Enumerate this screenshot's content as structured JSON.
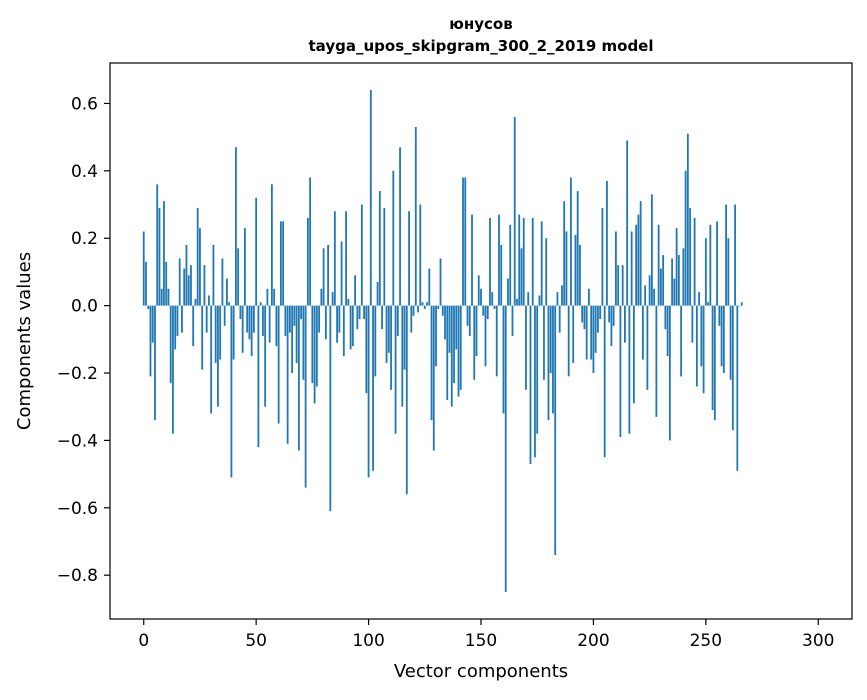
{
  "chart_data": {
    "type": "bar",
    "title": "юнусов",
    "subtitle": "tayga_upos_skipgram_300_2_2019 model",
    "xlabel": "Vector components",
    "ylabel": "Components values",
    "xlim": [
      -15,
      315
    ],
    "ylim": [
      -0.93,
      0.72
    ],
    "xticks": [
      0,
      50,
      100,
      150,
      200,
      250,
      300
    ],
    "xtick_labels": [
      "0",
      "50",
      "100",
      "150",
      "200",
      "250",
      "300"
    ],
    "yticks": [
      -0.8,
      -0.6,
      -0.4,
      -0.2,
      0.0,
      0.2,
      0.4,
      0.6
    ],
    "ytick_labels": [
      "−0.8",
      "−0.6",
      "−0.4",
      "−0.2",
      "0.0",
      "0.2",
      "0.4",
      "0.6"
    ],
    "grid": false,
    "bar_color": "#1f77b4",
    "x_start": 0,
    "values": [
      0.22,
      0.13,
      -0.01,
      -0.21,
      -0.11,
      -0.34,
      0.36,
      0.29,
      0.05,
      0.31,
      0.13,
      0.05,
      -0.23,
      -0.38,
      -0.13,
      -0.09,
      0.14,
      -0.08,
      0.11,
      0.18,
      0.09,
      0.12,
      -0.12,
      0.02,
      0.29,
      0.23,
      -0.19,
      0.12,
      -0.08,
      0.03,
      -0.32,
      0.18,
      -0.17,
      -0.3,
      -0.16,
      0.14,
      -0.06,
      0.08,
      0.01,
      -0.51,
      -0.16,
      0.47,
      0.17,
      -0.04,
      -0.14,
      0.23,
      -0.08,
      -0.1,
      -0.15,
      -0.08,
      0.32,
      -0.42,
      0.01,
      -0.09,
      -0.3,
      0.05,
      -0.11,
      0.36,
      0.05,
      -0.12,
      -0.35,
      0.25,
      0.25,
      -0.09,
      -0.41,
      -0.08,
      -0.2,
      -0.06,
      -0.17,
      -0.43,
      -0.04,
      -0.22,
      -0.54,
      0.26,
      0.38,
      -0.23,
      -0.29,
      -0.24,
      -0.08,
      0.05,
      0.17,
      -0.1,
      0.18,
      -0.61,
      0.04,
      0.28,
      -0.11,
      -0.08,
      0.19,
      -0.15,
      0.28,
      0.02,
      -0.13,
      -0.12,
      0.09,
      -0.07,
      -0.04,
      0.3,
      -0.04,
      -0.26,
      -0.51,
      0.64,
      -0.49,
      -0.21,
      0.07,
      0.34,
      -0.07,
      0.29,
      -0.17,
      -0.14,
      -0.25,
      0.4,
      -0.38,
      -0.09,
      0.47,
      -0.3,
      -0.19,
      -0.56,
      0.28,
      -0.08,
      -0.03,
      0.53,
      -0.02,
      0.3,
      0.01,
      -0.01,
      0.01,
      0.11,
      -0.34,
      -0.43,
      -0.18,
      -0.01,
      0.14,
      -0.03,
      -0.1,
      -0.28,
      -0.14,
      -0.3,
      -0.23,
      -0.13,
      -0.27,
      -0.25,
      0.38,
      0.38,
      -0.06,
      -0.09,
      0.27,
      -0.22,
      -0.15,
      0.09,
      0.05,
      -0.03,
      -0.18,
      -0.04,
      0.26,
      0.04,
      -0.01,
      -0.21,
      0.27,
      0.18,
      -0.32,
      -0.85,
      0.08,
      0.24,
      -0.09,
      0.56,
      0.02,
      0.27,
      0.17,
      0.26,
      -0.25,
      0.04,
      -0.47,
      0.26,
      -0.45,
      -0.38,
      0.03,
      0.25,
      -0.22,
      0.2,
      -0.34,
      -0.2,
      -0.32,
      -0.74,
      0.04,
      -0.08,
      0.06,
      0.31,
      0.22,
      -0.21,
      0.38,
      -0.17,
      0.21,
      0.34,
      0.18,
      -0.05,
      -0.07,
      -0.16,
      0.05,
      -0.16,
      -0.2,
      -0.14,
      -0.08,
      -0.04,
      0.29,
      -0.45,
      0.37,
      -0.05,
      -0.12,
      -0.06,
      0.22,
      0.12,
      -0.39,
      0.12,
      -0.11,
      0.49,
      -0.38,
      0.22,
      -0.29,
      0.24,
      0.27,
      0.31,
      -0.16,
      0.06,
      -0.25,
      0.09,
      0.33,
      0.05,
      -0.33,
      0.24,
      0.11,
      0.15,
      -0.07,
      -0.15,
      -0.4,
      0.14,
      0.08,
      0.23,
      0.15,
      -0.21,
      0.17,
      0.4,
      0.51,
      0.29,
      -0.11,
      0.26,
      -0.24,
      0.04,
      -0.18,
      -0.26,
      0.2,
      0.01,
      0.24,
      -0.31,
      -0.34,
      0.25,
      -0.06,
      -0.18,
      -0.2,
      0.3,
      0.2,
      -0.22,
      -0.37,
      0.3,
      -0.49,
      0.0,
      0.01
    ]
  }
}
